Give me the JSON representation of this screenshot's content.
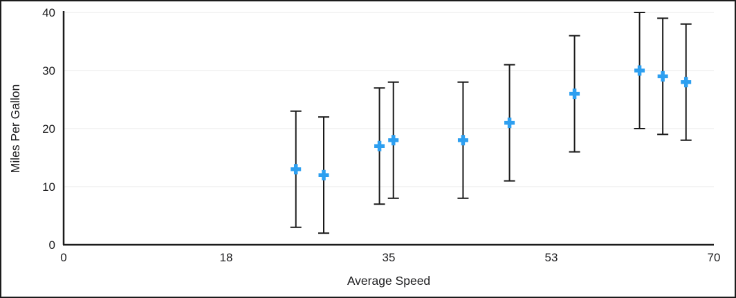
{
  "chart_data": {
    "type": "scatter",
    "title": "",
    "xlabel": "Average Speed",
    "ylabel": "Miles Per Gallon",
    "xlim": [
      0,
      70
    ],
    "ylim": [
      0,
      40
    ],
    "grid": "horizontal",
    "legend": "none",
    "grid_color": "#e8e8e8",
    "axis_color": "#1c1c1c",
    "x_ticks": [
      {
        "value": 0,
        "label": "0"
      },
      {
        "value": 17.5,
        "label": "18"
      },
      {
        "value": 35,
        "label": "35"
      },
      {
        "value": 52.5,
        "label": "53"
      },
      {
        "value": 70,
        "label": "70"
      }
    ],
    "y_ticks": [
      {
        "value": 0,
        "label": "0"
      },
      {
        "value": 10,
        "label": "10"
      },
      {
        "value": 20,
        "label": "20"
      },
      {
        "value": 30,
        "label": "30"
      },
      {
        "value": 40,
        "label": "40"
      }
    ],
    "series": [
      {
        "name": "Miles Per Gallon",
        "marker": "plus",
        "marker_color": "#2d9ff0",
        "error_bar_color": "#1a1a1a",
        "error": 10,
        "points": [
          {
            "x": 25,
            "y": 13,
            "err_low": 10,
            "err_high": 10
          },
          {
            "x": 28,
            "y": 12,
            "err_low": 10,
            "err_high": 10
          },
          {
            "x": 34,
            "y": 17,
            "err_low": 10,
            "err_high": 10
          },
          {
            "x": 35.5,
            "y": 18,
            "err_low": 10,
            "err_high": 10
          },
          {
            "x": 43,
            "y": 18,
            "err_low": 10,
            "err_high": 10
          },
          {
            "x": 48,
            "y": 21,
            "err_low": 10,
            "err_high": 10
          },
          {
            "x": 55,
            "y": 26,
            "err_low": 10,
            "err_high": 10
          },
          {
            "x": 62,
            "y": 30,
            "err_low": 10,
            "err_high": 10
          },
          {
            "x": 64.5,
            "y": 29,
            "err_low": 10,
            "err_high": 10
          },
          {
            "x": 67,
            "y": 28,
            "err_low": 10,
            "err_high": 10
          }
        ]
      }
    ]
  }
}
